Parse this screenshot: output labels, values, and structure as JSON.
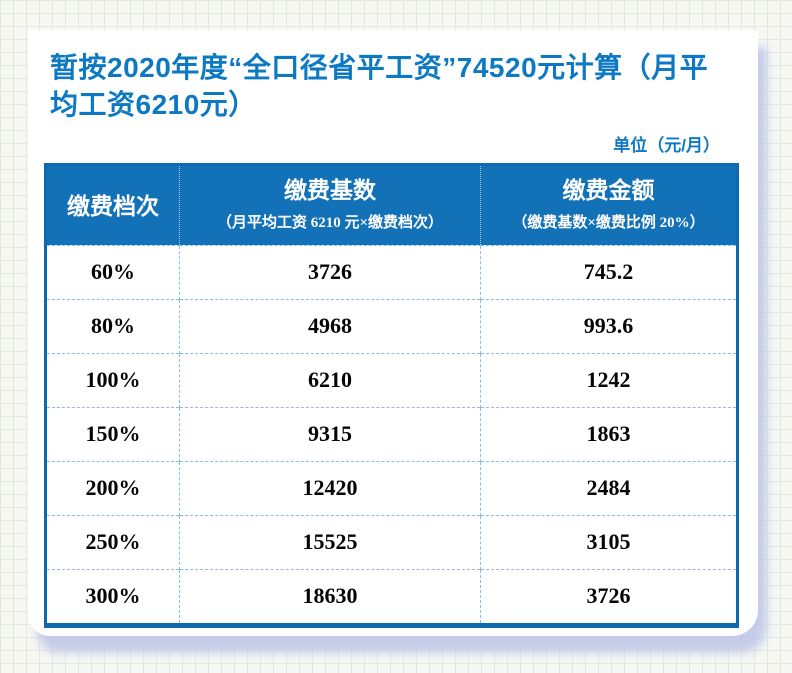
{
  "title": "暂按2020年度“全口径省平工资”74520元计算（月平均工资6210元）",
  "unit_label": "单位（元/月）",
  "colors": {
    "title_blue": "#0e79c3",
    "header_bg": "#1371b7",
    "outer_border": "#1169ad",
    "row_divider": "#85bfe8",
    "body_text": "#050505",
    "card_shadow": "#bcc5e7",
    "grid_line": "#e3e8df"
  },
  "table": {
    "columns": [
      {
        "title": "缴费档次",
        "subtitle": ""
      },
      {
        "title": "缴费基数",
        "subtitle": "（月平均工资 6210 元×缴费档次）"
      },
      {
        "title": "缴费金额",
        "subtitle": "（缴费基数×缴费比例 20%）"
      }
    ],
    "rows": [
      {
        "tier": "60%",
        "base": "3726",
        "amount": "745.2"
      },
      {
        "tier": "80%",
        "base": "4968",
        "amount": "993.6"
      },
      {
        "tier": "100%",
        "base": "6210",
        "amount": "1242"
      },
      {
        "tier": "150%",
        "base": "9315",
        "amount": "1863"
      },
      {
        "tier": "200%",
        "base": "12420",
        "amount": "2484"
      },
      {
        "tier": "250%",
        "base": "15525",
        "amount": "3105"
      },
      {
        "tier": "300%",
        "base": "18630",
        "amount": "3726"
      }
    ]
  }
}
